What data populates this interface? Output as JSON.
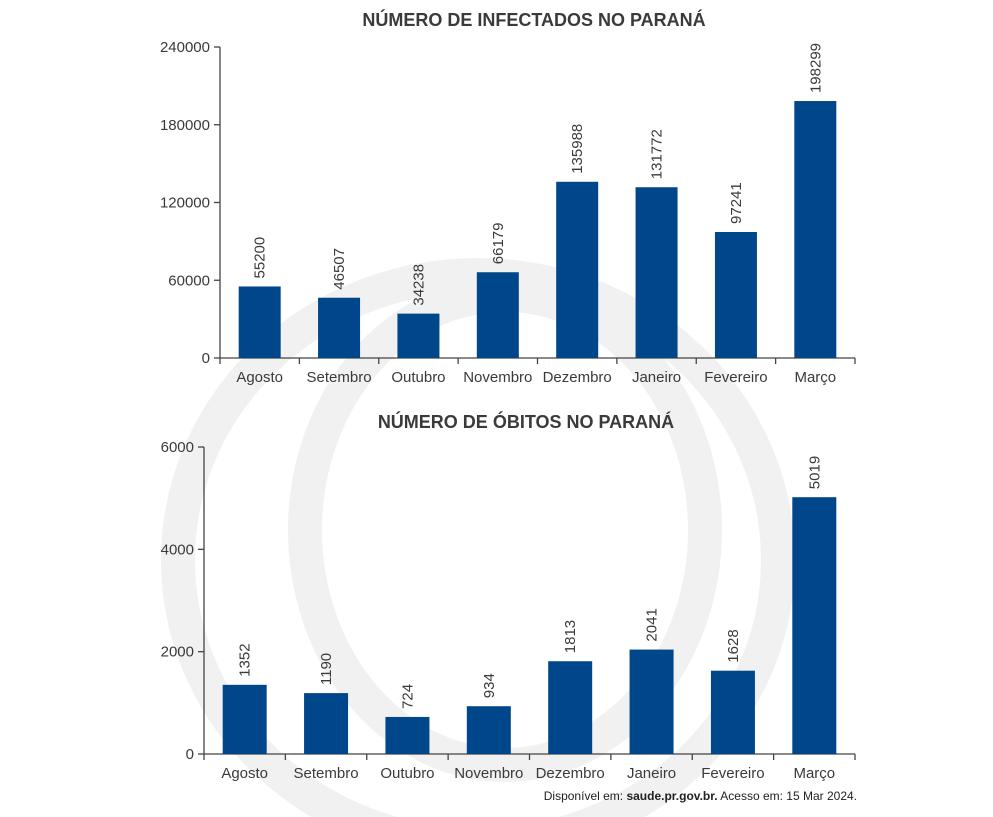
{
  "chart_data": [
    {
      "type": "bar",
      "title": "NÚMERO DE INFECTADOS NO PARANÁ",
      "categories": [
        "Agosto",
        "Setembro",
        "Outubro",
        "Novembro",
        "Dezembro",
        "Janeiro",
        "Fevereiro",
        "Março"
      ],
      "values": [
        55200,
        46507,
        34238,
        66179,
        135988,
        131772,
        97241,
        198299
      ],
      "data_labels": [
        "55200",
        "46507",
        "34238",
        "66179",
        "135988",
        "131772",
        "97241",
        "198299"
      ],
      "yticks": [
        "0",
        "60000",
        "120000",
        "180000",
        "240000"
      ],
      "ylim": [
        0,
        240000
      ],
      "bar_color": "#00468a",
      "grid": false,
      "legend": "none"
    },
    {
      "type": "bar",
      "title": "NÚMERO DE ÓBITOS NO PARANÁ",
      "categories": [
        "Agosto",
        "Setembro",
        "Outubro",
        "Novembro",
        "Dezembro",
        "Janeiro",
        "Fevereiro",
        "Março"
      ],
      "values": [
        1352,
        1190,
        724,
        934,
        1813,
        2041,
        1628,
        5019
      ],
      "data_labels": [
        "1352",
        "1190",
        "724",
        "934",
        "1813",
        "2041",
        "1628",
        "5019"
      ],
      "yticks": [
        "0",
        "2000",
        "4000",
        "6000"
      ],
      "ylim": [
        0,
        6000
      ],
      "bar_color": "#00468a",
      "grid": false,
      "legend": "none"
    }
  ],
  "source": {
    "prefix": "Disponível em: ",
    "site": "saude.pr.gov.br.",
    "suffix": " Acesso em: 15 Mar 2024."
  },
  "colors": {
    "bar": "#00468a",
    "text": "#3a3a3a",
    "watermark": "#f0f0f0"
  }
}
